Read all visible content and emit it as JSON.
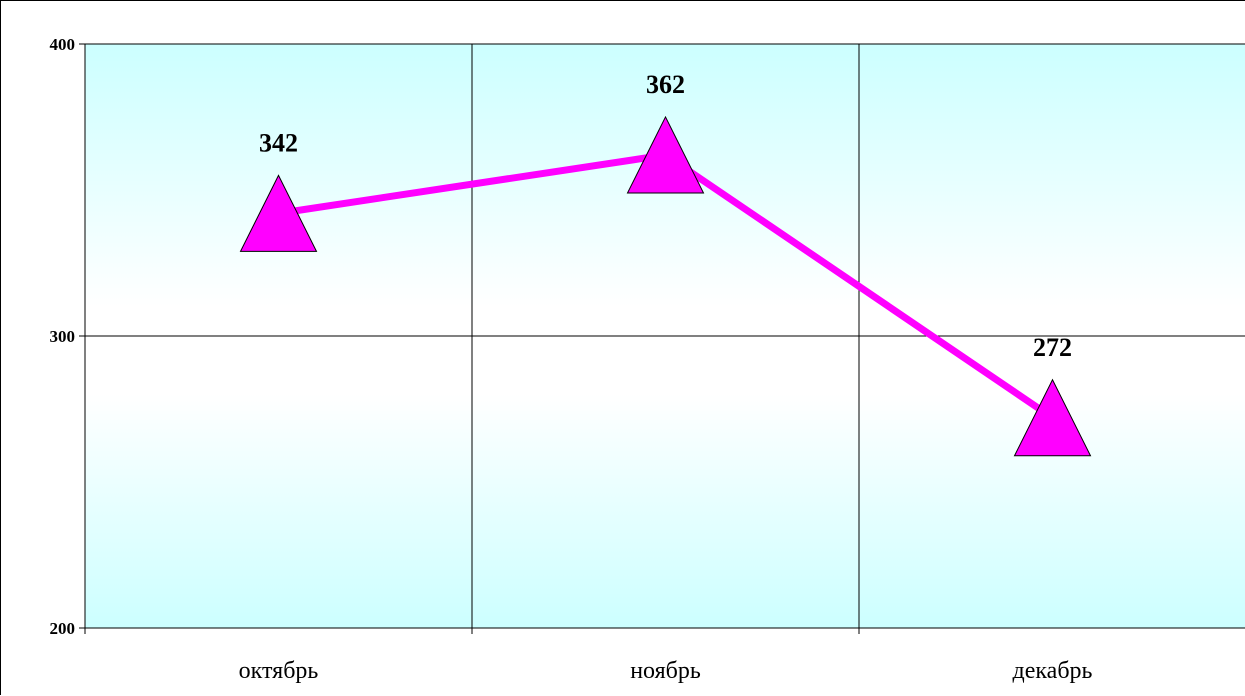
{
  "chart_data": {
    "type": "line",
    "title": "",
    "xlabel": "",
    "ylabel": "",
    "categories": [
      "октябрь",
      "ноябрь",
      "декабрь"
    ],
    "series": [
      {
        "values": [
          342,
          362,
          272
        ],
        "color": "#ff00ff",
        "marker": "triangle"
      }
    ],
    "data_labels": [
      "342",
      "362",
      "272"
    ],
    "ylim": [
      200,
      400
    ],
    "y_ticks": [
      200,
      300,
      400
    ],
    "y_tick_labels": [
      "200",
      "300",
      "400"
    ],
    "grid": true,
    "legend": "none",
    "plot_background": {
      "edge_color": "#ccffff",
      "center_color": "#ffffff"
    }
  }
}
